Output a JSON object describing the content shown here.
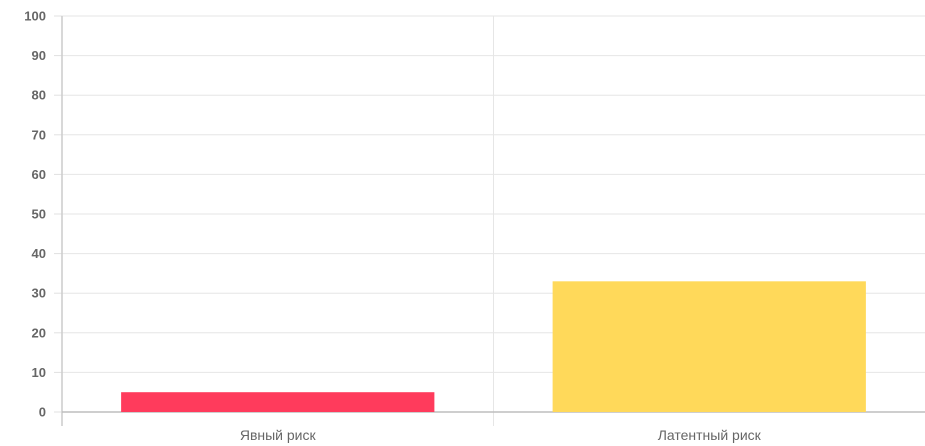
{
  "chart_data": {
    "type": "bar",
    "categories": [
      "Явный риск",
      "Латентный риск"
    ],
    "values": [
      5,
      33
    ],
    "colors": [
      "#ff3b5c",
      "#ffd95a"
    ],
    "ylim": [
      0,
      100
    ],
    "yticks": [
      "0",
      "10",
      "20",
      "30",
      "40",
      "50",
      "60",
      "70",
      "80",
      "90",
      "100"
    ],
    "grid": true,
    "legend": "none"
  }
}
